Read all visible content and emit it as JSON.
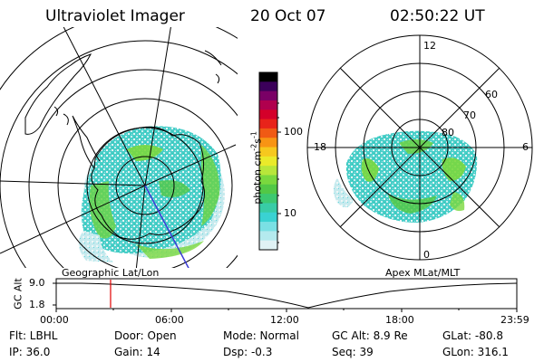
{
  "header": {
    "instrument": "Ultraviolet Imager",
    "date": "20 Oct 07",
    "time": "02:50:22 UT"
  },
  "colorbar": {
    "unit_label": "photon cm",
    "unit_sup1": "-2",
    "unit_s": "s",
    "unit_sup2": "-1",
    "ticks": [
      "100",
      "10"
    ],
    "colors": [
      "#000000",
      "#3b005a",
      "#7a0066",
      "#b0004e",
      "#d4002a",
      "#e8231a",
      "#f05a14",
      "#f89414",
      "#f6c81e",
      "#eaea2a",
      "#b8e63a",
      "#7ad83e",
      "#52c846",
      "#3cc870",
      "#38cca6",
      "#3ad2d2",
      "#7ae0e4",
      "#b4eaee",
      "#e0f2f4"
    ]
  },
  "left_map": {
    "label": "Geographic Lat/Lon"
  },
  "right_map": {
    "label": "Apex MLat/MLT",
    "mlt_labels": {
      "top": "12",
      "left": "18",
      "right": "6",
      "bottom": "0"
    },
    "lat_labels": [
      "60",
      "70",
      "80"
    ]
  },
  "timeline": {
    "ylabel": "GC Alt",
    "yticks": [
      "9.0",
      "1.8"
    ],
    "xticks": [
      "00:00",
      "06:00",
      "12:00",
      "18:00",
      "23:59"
    ],
    "marker_time": "02:50",
    "marker_color": "#e00000"
  },
  "info": {
    "filter": "Flt: LBHL",
    "ip": "IP: 36.0",
    "door": "Door: Open",
    "gain": "Gain: 14",
    "mode": "Mode: Normal",
    "dsp": "Dsp:    -0.3",
    "gcalt": "GC Alt: 8.9 Re",
    "seq": "Seq: 39",
    "glat": "GLat: -80.8",
    "glon": "GLon: 316.1"
  }
}
